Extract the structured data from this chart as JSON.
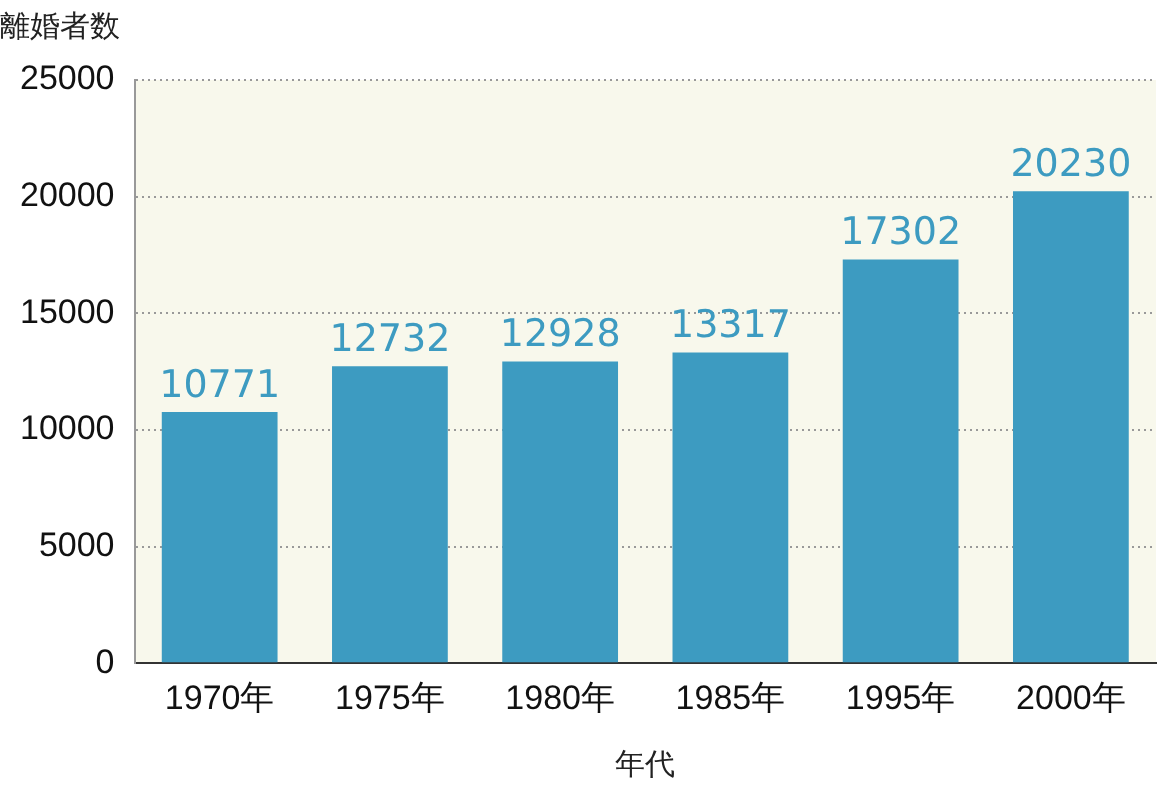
{
  "chart_data": {
    "type": "bar",
    "ylabel": "離婚者数",
    "xlabel": "年代",
    "categories": [
      "1970年",
      "1975年",
      "1980年",
      "1985年",
      "1995年",
      "2000年"
    ],
    "values": [
      10771,
      12732,
      12928,
      13317,
      17302,
      20230
    ],
    "color": "#3d9bc1",
    "ylim": [
      0,
      25000
    ],
    "yticks": [
      0,
      5000,
      10000,
      15000,
      20000,
      25000
    ],
    "grid": "y",
    "data_labels": true,
    "legend": false
  }
}
